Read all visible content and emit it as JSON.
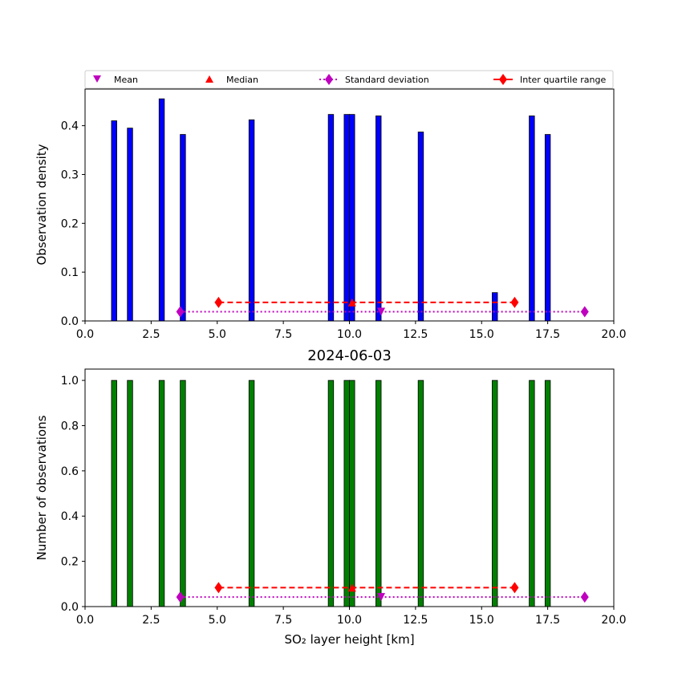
{
  "legend": {
    "mean": "Mean",
    "median": "Median",
    "std": "Standard deviation",
    "iqr": "Inter quartile range"
  },
  "colors": {
    "density_bar": "#0000ff",
    "count_bar": "#008000",
    "mean": "#bf00bf",
    "median": "#ff0000",
    "std": "#bf00bf",
    "iqr": "#ff0000"
  },
  "chart_data": [
    {
      "type": "bar",
      "title": "",
      "xlabel": "",
      "ylabel": "Observation density",
      "xlim": [
        0,
        20
      ],
      "ylim": [
        0,
        0.475
      ],
      "xticks": [
        "0.0",
        "2.5",
        "5.0",
        "7.5",
        "10.0",
        "12.5",
        "15.0",
        "17.5",
        "20.0"
      ],
      "yticks": [
        "0.0",
        "0.1",
        "0.2",
        "0.3",
        "0.4"
      ],
      "bar_width": 0.2,
      "x": [
        1.1,
        1.7,
        2.9,
        3.7,
        6.3,
        9.3,
        9.9,
        10.1,
        11.1,
        12.7,
        15.5,
        16.9,
        17.5
      ],
      "values": [
        0.41,
        0.395,
        0.455,
        0.382,
        0.412,
        0.423,
        0.423,
        0.423,
        0.42,
        0.387,
        0.058,
        0.42,
        0.382
      ],
      "stats": {
        "mean": {
          "x": 11.2,
          "y": 0.019
        },
        "median": {
          "x": 10.1,
          "y": 0.038
        },
        "std": {
          "x": [
            3.6,
            18.9
          ],
          "y": 0.019
        },
        "iqr": {
          "x": [
            5.05,
            16.25
          ],
          "y": 0.038
        }
      }
    },
    {
      "type": "bar",
      "title": "2024-06-03",
      "xlabel": "SO₂ layer height [km]",
      "ylabel": "Number of observations",
      "xlim": [
        0,
        20
      ],
      "ylim": [
        0,
        1.05
      ],
      "xticks": [
        "0.0",
        "2.5",
        "5.0",
        "7.5",
        "10.0",
        "12.5",
        "15.0",
        "17.5",
        "20.0"
      ],
      "yticks": [
        "0.0",
        "0.2",
        "0.4",
        "0.6",
        "0.8",
        "1.0"
      ],
      "bar_width": 0.2,
      "x": [
        1.1,
        1.7,
        2.9,
        3.7,
        6.3,
        9.3,
        9.9,
        10.1,
        11.1,
        12.7,
        15.5,
        16.9,
        17.5
      ],
      "values": [
        1,
        1,
        1,
        1,
        1,
        1,
        1,
        1,
        1,
        1,
        1,
        1,
        1
      ],
      "stats": {
        "mean": {
          "x": 11.2,
          "y": 0.042
        },
        "median": {
          "x": 10.1,
          "y": 0.084
        },
        "std": {
          "x": [
            3.6,
            18.9
          ],
          "y": 0.042
        },
        "iqr": {
          "x": [
            5.05,
            16.25
          ],
          "y": 0.084
        }
      }
    }
  ]
}
